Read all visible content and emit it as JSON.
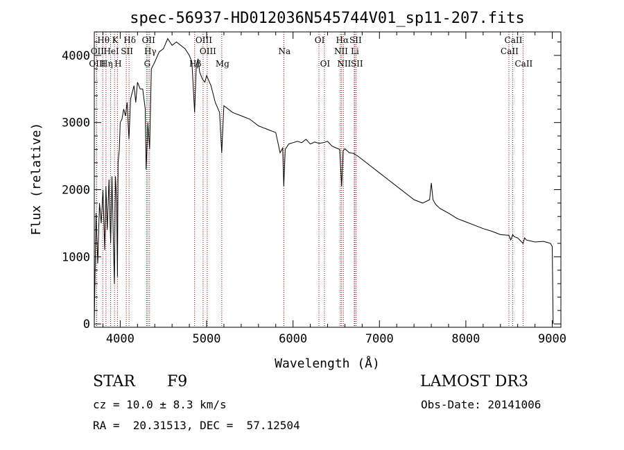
{
  "chart_data": {
    "type": "line",
    "title": "spec-56937-HD012036N545744V01_sp11-207.fits",
    "xlabel": "Wavelength (Å)",
    "ylabel": "Flux (relative)",
    "xlim": [
      3700,
      9100
    ],
    "ylim": [
      -50,
      4350
    ],
    "xticks": [
      4000,
      5000,
      6000,
      7000,
      8000,
      9000
    ],
    "yticks": [
      0,
      1000,
      2000,
      3000,
      4000
    ],
    "series": [
      {
        "name": "flux",
        "x": [
          3700,
          3720,
          3740,
          3760,
          3780,
          3800,
          3820,
          3835,
          3850,
          3870,
          3889,
          3905,
          3920,
          3933,
          3945,
          3960,
          3968,
          3975,
          3990,
          4000,
          4020,
          4040,
          4060,
          4080,
          4101,
          4120,
          4140,
          4160,
          4180,
          4200,
          4230,
          4260,
          4290,
          4300,
          4320,
          4340,
          4360,
          4400,
          4450,
          4500,
          4550,
          4600,
          4650,
          4700,
          4750,
          4800,
          4830,
          4861,
          4880,
          4900,
          4920,
          4950,
          4980,
          5000,
          5050,
          5100,
          5150,
          5175,
          5200,
          5250,
          5300,
          5400,
          5500,
          5600,
          5700,
          5800,
          5850,
          5880,
          5893,
          5910,
          5950,
          6000,
          6050,
          6100,
          6150,
          6200,
          6250,
          6300,
          6350,
          6400,
          6450,
          6500,
          6540,
          6563,
          6580,
          6600,
          6650,
          6700,
          6750,
          6800,
          6900,
          7000,
          7100,
          7200,
          7300,
          7400,
          7500,
          7580,
          7600,
          7620,
          7650,
          7700,
          7800,
          7900,
          8000,
          8100,
          8200,
          8300,
          8400,
          8498,
          8520,
          8542,
          8560,
          8600,
          8662,
          8680,
          8700,
          8800,
          8900,
          8980,
          9000,
          9010
        ],
        "y": [
          20,
          1650,
          900,
          1800,
          1500,
          2000,
          1100,
          2050,
          1400,
          2150,
          1200,
          2200,
          1300,
          600,
          2200,
          1800,
          700,
          2400,
          2600,
          3000,
          3050,
          3200,
          3100,
          3300,
          2750,
          3350,
          3450,
          3550,
          3300,
          3600,
          3500,
          3500,
          3200,
          2300,
          3000,
          2600,
          3800,
          3900,
          4050,
          4100,
          4250,
          4150,
          4200,
          4150,
          4100,
          4000,
          3900,
          3150,
          3850,
          3950,
          3750,
          3650,
          3600,
          3700,
          3550,
          3300,
          3150,
          2550,
          3250,
          3200,
          3150,
          3100,
          3050,
          2950,
          2900,
          2850,
          2550,
          2620,
          2050,
          2600,
          2680,
          2700,
          2720,
          2700,
          2750,
          2680,
          2710,
          2690,
          2700,
          2720,
          2650,
          2620,
          2600,
          2050,
          2580,
          2610,
          2550,
          2540,
          2500,
          2450,
          2350,
          2250,
          2150,
          2050,
          1950,
          1850,
          1800,
          1850,
          2100,
          1850,
          1780,
          1720,
          1650,
          1570,
          1520,
          1470,
          1420,
          1380,
          1330,
          1320,
          1250,
          1330,
          1300,
          1280,
          1200,
          1280,
          1250,
          1220,
          1230,
          1200,
          1150,
          0
        ]
      }
    ],
    "line_ids": [
      {
        "label": "Hθ",
        "x": 3798,
        "row": 1
      },
      {
        "label": "K",
        "x": 3934,
        "row": 1
      },
      {
        "label": "Hδ",
        "x": 4102,
        "row": 1
      },
      {
        "label": "OII",
        "x": 4320,
        "row": 1
      },
      {
        "label": "OIII",
        "x": 4959,
        "row": 1
      },
      {
        "label": "OI",
        "x": 6300,
        "row": 1
      },
      {
        "label": "Hα",
        "x": 6563,
        "row": 1
      },
      {
        "label": "SII",
        "x": 6716,
        "row": 1
      },
      {
        "label": "CaII",
        "x": 8542,
        "row": 1
      },
      {
        "label": "OII",
        "x": 3727,
        "row": 2
      },
      {
        "label": "HeI",
        "x": 3889,
        "row": 2
      },
      {
        "label": "SII",
        "x": 4070,
        "row": 2
      },
      {
        "label": "Hγ",
        "x": 4340,
        "row": 2
      },
      {
        "label": "OIII",
        "x": 5007,
        "row": 2
      },
      {
        "label": "Na",
        "x": 5893,
        "row": 2
      },
      {
        "label": "NII",
        "x": 6548,
        "row": 2
      },
      {
        "label": "Li",
        "x": 6708,
        "row": 2
      },
      {
        "label": "CaII",
        "x": 8498,
        "row": 2
      },
      {
        "label": "OIII",
        "x": 3727,
        "row": 3
      },
      {
        "label": "Hη",
        "x": 3835,
        "row": 3
      },
      {
        "label": "H",
        "x": 3968,
        "row": 3
      },
      {
        "label": "G",
        "x": 4305,
        "row": 3
      },
      {
        "label": "Hβ",
        "x": 4861,
        "row": 3
      },
      {
        "label": "Mg",
        "x": 5175,
        "row": 3
      },
      {
        "label": "OI",
        "x": 6363,
        "row": 3
      },
      {
        "label": "NII",
        "x": 6583,
        "row": 3
      },
      {
        "label": "SII",
        "x": 6731,
        "row": 3
      },
      {
        "label": "CaII",
        "x": 8662,
        "row": 3
      }
    ],
    "line_color": "#8b0000"
  },
  "info": {
    "class_label": "STAR",
    "subclass": "F9",
    "survey": "LAMOST DR3",
    "redshift": "cz = 10.0 ± 8.3 km/s",
    "obs_date": "Obs-Date: 20141006",
    "coords": "RA =  20.31513, DEC =  57.12504"
  }
}
